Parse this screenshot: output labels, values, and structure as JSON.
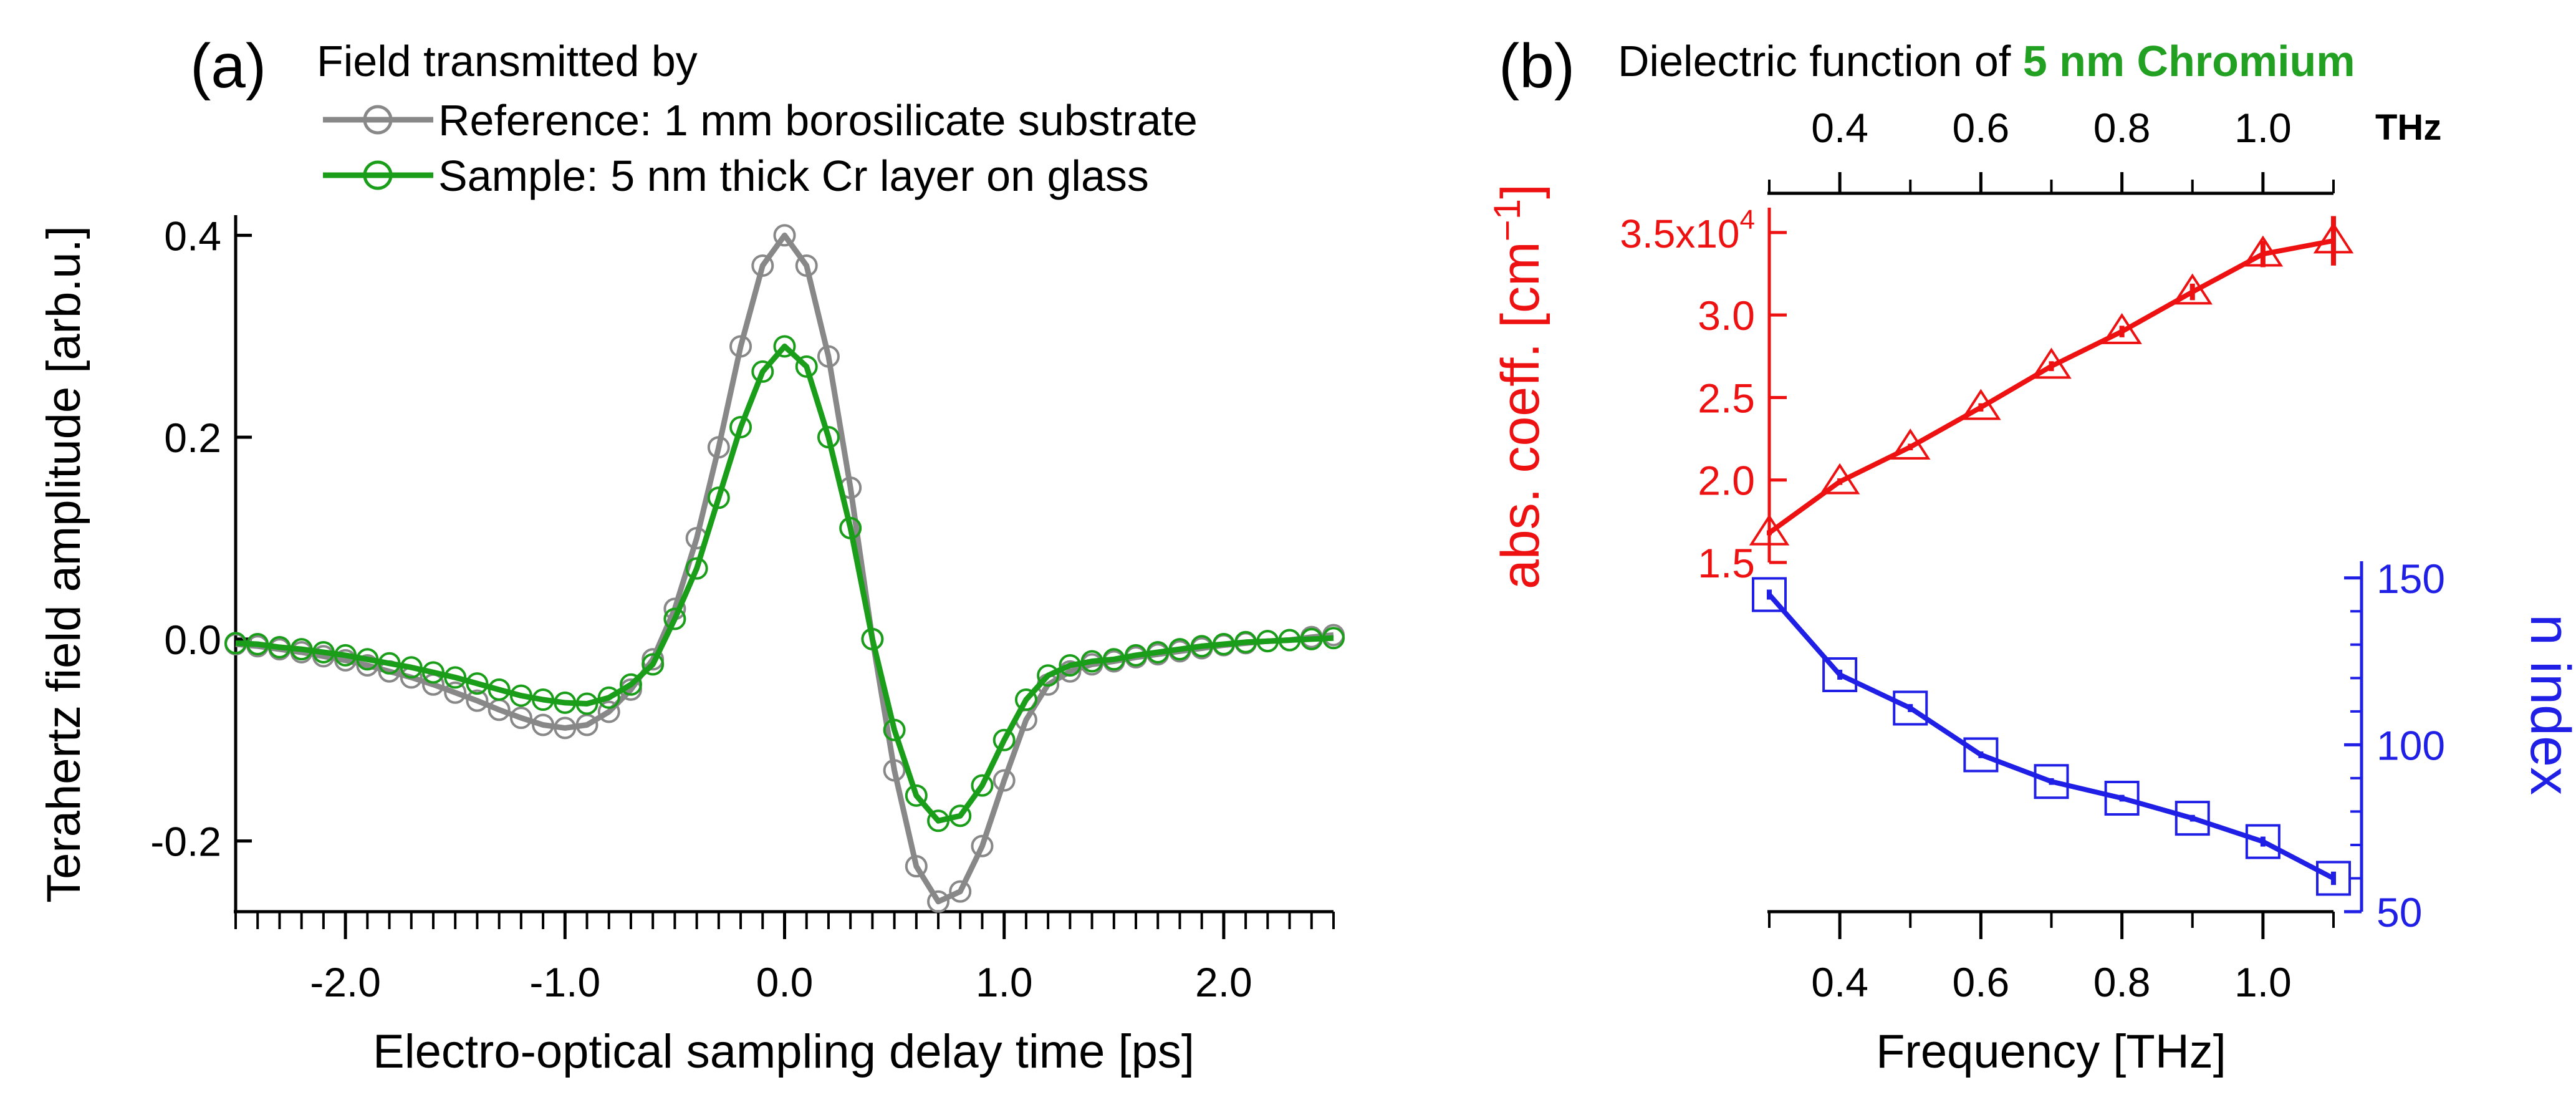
{
  "panel_a": {
    "tag": "(a)",
    "legend_title": "Field transmitted by",
    "ylabel": "Terahertz field amplitude [arb.u.]",
    "xlabel": "Electro-optical sampling delay time [ps]"
  },
  "panel_b": {
    "tag": "(b)",
    "title_prefix": "Dielectric function of ",
    "title_highlight": "5 nm Chromium",
    "top_axis_unit": "THz",
    "ylabel_left_main": "abs. coeff. [cm",
    "ylabel_left_sup": "−1",
    "ylabel_left_close": "]",
    "ylabel_right": "n index",
    "xlabel": "Frequency [THz]",
    "exp_tick_base": "3.5x10",
    "exp_tick_power": "4"
  },
  "colors": {
    "reference": "#888888",
    "sample": "#1a9e1a",
    "absorption": "#ee1111",
    "refractive": "#1f1fe6",
    "title_highlight": "#22a022"
  },
  "chart_data": [
    {
      "type": "line",
      "title": "",
      "xlabel": "Electro-optical sampling delay time [ps]",
      "ylabel": "Terahertz field amplitude [arb.u.]",
      "xlim": [
        -2.5,
        2.5
      ],
      "ylim": [
        -0.27,
        0.42
      ],
      "x_ticks": [
        -2.0,
        -1.0,
        0.0,
        1.0,
        2.0
      ],
      "x_tick_labels": [
        "-2.0",
        "-1.0",
        "0.0",
        "1.0",
        "2.0"
      ],
      "y_ticks": [
        -0.2,
        0.0,
        0.2,
        0.4
      ],
      "y_tick_labels": [
        "-0.2",
        "0.0",
        "0.2",
        "0.4"
      ],
      "legend": "top-left, outside plot area",
      "grid": false,
      "marker": "circle",
      "series": [
        {
          "name": "Reference: 1 mm borosilicate substrate",
          "color": "#888888",
          "x": [
            -2.5,
            -2.4,
            -2.3,
            -2.2,
            -2.1,
            -2.0,
            -1.9,
            -1.8,
            -1.7,
            -1.6,
            -1.5,
            -1.4,
            -1.3,
            -1.2,
            -1.1,
            -1.0,
            -0.9,
            -0.8,
            -0.7,
            -0.6,
            -0.5,
            -0.4,
            -0.3,
            -0.2,
            -0.1,
            0.0,
            0.1,
            0.2,
            0.3,
            0.4,
            0.5,
            0.6,
            0.7,
            0.8,
            0.9,
            1.0,
            1.1,
            1.2,
            1.3,
            1.4,
            1.5,
            1.6,
            1.7,
            1.8,
            1.9,
            2.0,
            2.1,
            2.2,
            2.3,
            2.4,
            2.5
          ],
          "y": [
            -0.005,
            -0.007,
            -0.01,
            -0.013,
            -0.017,
            -0.021,
            -0.026,
            -0.032,
            -0.038,
            -0.045,
            -0.053,
            -0.061,
            -0.07,
            -0.078,
            -0.085,
            -0.088,
            -0.085,
            -0.072,
            -0.05,
            -0.02,
            0.03,
            0.1,
            0.19,
            0.29,
            0.37,
            0.4,
            0.37,
            0.28,
            0.15,
            0.0,
            -0.13,
            -0.225,
            -0.26,
            -0.25,
            -0.205,
            -0.14,
            -0.08,
            -0.045,
            -0.032,
            -0.025,
            -0.022,
            -0.018,
            -0.015,
            -0.012,
            -0.009,
            -0.006,
            -0.004,
            -0.002,
            -0.001,
            0.002,
            0.004
          ]
        },
        {
          "name": "Sample: 5 nm thick Cr layer on glass",
          "color": "#1a9e1a",
          "x": [
            -2.5,
            -2.4,
            -2.3,
            -2.2,
            -2.1,
            -2.0,
            -1.9,
            -1.8,
            -1.7,
            -1.6,
            -1.5,
            -1.4,
            -1.3,
            -1.2,
            -1.1,
            -1.0,
            -0.9,
            -0.8,
            -0.7,
            -0.6,
            -0.5,
            -0.4,
            -0.3,
            -0.2,
            -0.1,
            0.0,
            0.1,
            0.2,
            0.3,
            0.4,
            0.5,
            0.6,
            0.7,
            0.8,
            0.9,
            1.0,
            1.1,
            1.2,
            1.3,
            1.4,
            1.5,
            1.6,
            1.7,
            1.8,
            1.9,
            2.0,
            2.1,
            2.2,
            2.3,
            2.4,
            2.5
          ],
          "y": [
            -0.004,
            -0.005,
            -0.008,
            -0.01,
            -0.013,
            -0.016,
            -0.02,
            -0.024,
            -0.028,
            -0.033,
            -0.038,
            -0.044,
            -0.05,
            -0.056,
            -0.06,
            -0.063,
            -0.064,
            -0.058,
            -0.045,
            -0.025,
            0.02,
            0.07,
            0.14,
            0.21,
            0.265,
            0.29,
            0.27,
            0.2,
            0.11,
            0.0,
            -0.09,
            -0.155,
            -0.18,
            -0.175,
            -0.145,
            -0.1,
            -0.06,
            -0.036,
            -0.026,
            -0.022,
            -0.02,
            -0.016,
            -0.013,
            -0.01,
            -0.007,
            -0.005,
            -0.003,
            -0.002,
            -0.001,
            0.0,
            0.001
          ]
        }
      ]
    },
    {
      "type": "line",
      "title": "Dielectric function of 5 nm Chromium",
      "xlabel": "Frequency [THz]",
      "xlim": [
        0.3,
        1.1
      ],
      "x_ticks": [
        0.4,
        0.6,
        0.8,
        1.0
      ],
      "x_tick_labels": [
        "0.4",
        "0.6",
        "0.8",
        "1.0"
      ],
      "top_axis_unit": "THz",
      "grid": false,
      "series": [
        {
          "name": "abs. coeff. [cm−1]",
          "axis": "left",
          "color": "#ee1111",
          "marker": "triangle",
          "ylim": [
            15000,
            37000
          ],
          "y_ticks": [
            15000,
            20000,
            25000,
            30000,
            35000
          ],
          "y_tick_labels": [
            "1.5",
            "2.0",
            "2.5",
            "3.0",
            "3.5x10^4"
          ],
          "x": [
            0.3,
            0.4,
            0.5,
            0.6,
            0.7,
            0.8,
            0.9,
            1.0,
            1.1
          ],
          "y": [
            16800,
            19900,
            22000,
            24400,
            26900,
            29000,
            31400,
            33700,
            34500
          ],
          "error": [
            150,
            200,
            200,
            250,
            300,
            350,
            500,
            800,
            1500
          ]
        },
        {
          "name": "n index",
          "axis": "right",
          "color": "#1f1fe6",
          "marker": "square",
          "ylim": [
            50,
            155
          ],
          "y_ticks": [
            50,
            100,
            150
          ],
          "y_tick_labels": [
            "50",
            "100",
            "150"
          ],
          "x": [
            0.3,
            0.4,
            0.5,
            0.6,
            0.7,
            0.8,
            0.9,
            1.0,
            1.1
          ],
          "y": [
            145,
            121,
            111,
            97,
            89,
            84,
            78,
            71,
            60
          ],
          "error": [
            1.5,
            1.5,
            1.2,
            1.0,
            1.0,
            1.0,
            1.0,
            1.5,
            2.0
          ]
        }
      ]
    }
  ]
}
